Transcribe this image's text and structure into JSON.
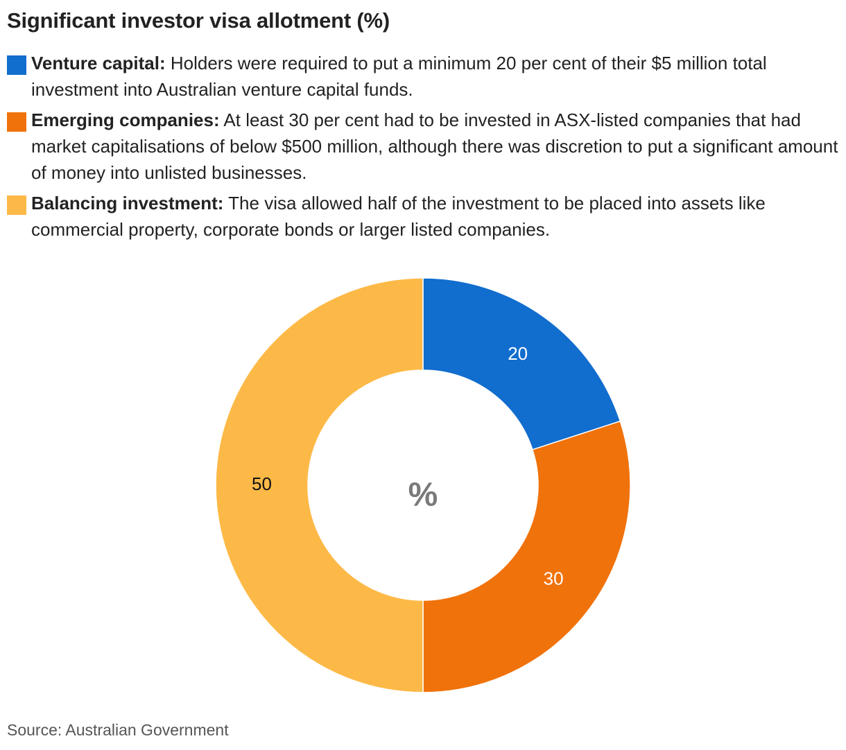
{
  "title": "Significant investor visa allotment (%)",
  "legend": [
    {
      "label": "Venture capital:",
      "text": "Holders were required to put a minimum 20 per cent of their $5 million total investment into Australian venture capital funds.",
      "color": "#116dce"
    },
    {
      "label": "Emerging companies:",
      "text": "At least 30 per cent had to be invested in ASX-listed companies that had market capitalisations of below $500 million, although there was discretion to put a significant amount of money into unlisted businesses.",
      "color": "#f0720a"
    },
    {
      "label": "Balancing investment:",
      "text": "The visa allowed half of the investment to be placed into assets like commercial property, corporate bonds or larger listed companies.",
      "color": "#fdb947"
    }
  ],
  "center_label": "%",
  "source": "Source: Australian Government",
  "chart_data": {
    "type": "pie",
    "title": "Significant investor visa allotment (%)",
    "donut": true,
    "categories": [
      "Venture capital",
      "Emerging companies",
      "Balancing investment"
    ],
    "values": [
      20,
      30,
      50
    ],
    "labels": [
      "20",
      "30",
      "50"
    ],
    "colors": [
      "#116dce",
      "#f0720a",
      "#fdb947"
    ],
    "label_colors": [
      "#ffffff",
      "#ffffff",
      "#111111"
    ],
    "center_label": "%"
  }
}
